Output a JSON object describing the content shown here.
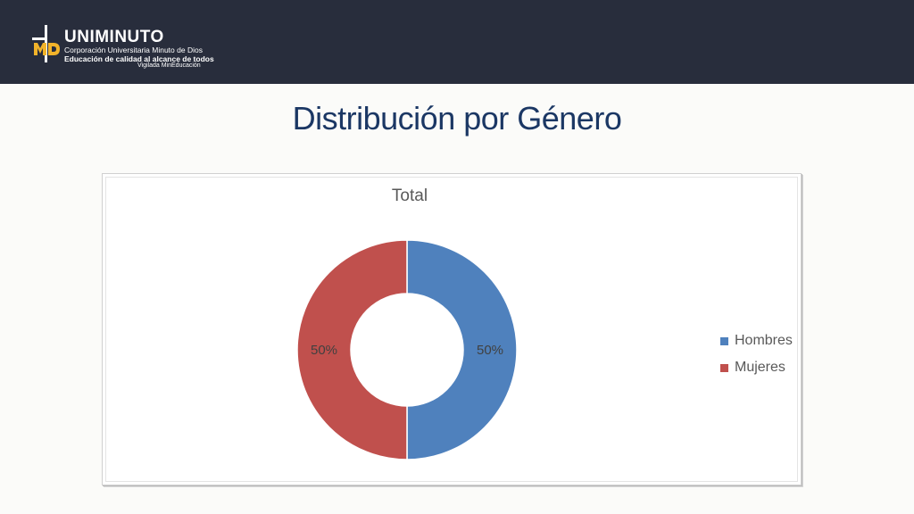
{
  "header": {
    "logo": {
      "mark": "MD",
      "name": "UNIMINUTO",
      "line1": "Corporación Universitaria Minuto de Dios",
      "line2": "Educación de calidad al alcance de todos",
      "line3": "Vigilada MinEducación"
    },
    "background_color": "#282d3c"
  },
  "slide": {
    "title": "Distribución por Género",
    "title_color": "#1b3764"
  },
  "chart_data": {
    "type": "pie",
    "variant": "donut",
    "title": "Total",
    "categories": [
      "Hombres",
      "Mujeres"
    ],
    "values": [
      50,
      50
    ],
    "data_labels": [
      "50%",
      "50%"
    ],
    "colors": [
      "#4f81bd",
      "#c0504d"
    ],
    "legend": {
      "position": "right",
      "entries": [
        "Hombres",
        "Mujeres"
      ]
    }
  }
}
